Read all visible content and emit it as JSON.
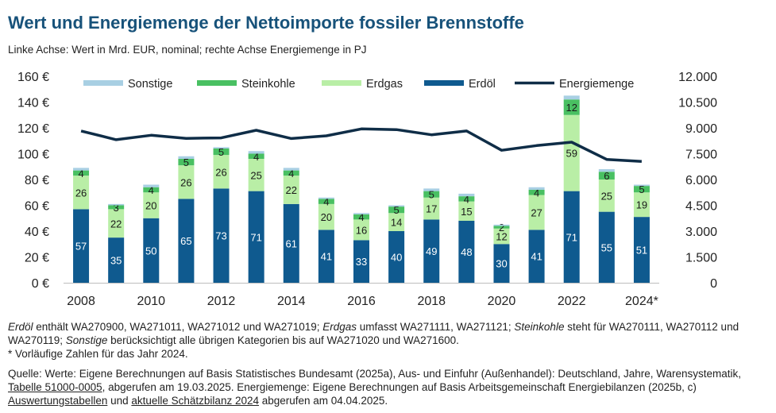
{
  "title": "Wert und Energiemenge der Nettoimporte fossiler Brennstoffe",
  "subtitle": "Linke Achse: Wert in Mrd. EUR, nominal; rechte Achse Energiemenge in PJ",
  "colors": {
    "title": "#17527a",
    "Erdöl": "#0f5a8f",
    "Erdgas": "#b9eea6",
    "Steinkohle": "#49c062",
    "Sonstige": "#a8cfe3",
    "Energiemenge": "#0f2d47"
  },
  "chart_data": {
    "type": "bar",
    "stacked": true,
    "grid": false,
    "legend_position": "top",
    "x_tick_labels": [
      "2008",
      "2010",
      "2012",
      "2014",
      "2016",
      "2018",
      "2020",
      "2022",
      "2024*"
    ],
    "categories": [
      "2008",
      "2009",
      "2010",
      "2011",
      "2012",
      "2013",
      "2014",
      "2015",
      "2016",
      "2017",
      "2018",
      "2019",
      "2020",
      "2021",
      "2022",
      "2023",
      "2024*"
    ],
    "y_left": {
      "ylim": [
        0,
        160
      ],
      "ticks": [
        "0 €",
        "20 €",
        "40 €",
        "60 €",
        "80 €",
        "100 €",
        "120 €",
        "140 €",
        "160 €"
      ]
    },
    "y_right": {
      "ylim": [
        0,
        12000
      ],
      "ticks": [
        "0",
        "1.500",
        "3.000",
        "4.500",
        "6.000",
        "7.500",
        "9.000",
        "10.500",
        "12.000"
      ]
    },
    "legend": [
      "Sonstige",
      "Steinkohle",
      "Erdgas",
      "Erdöl",
      "Energiemenge"
    ],
    "series": [
      {
        "name": "Erdöl",
        "axis": "left",
        "labels": true,
        "values": [
          57,
          35,
          50,
          65,
          73,
          71,
          61,
          41,
          33,
          40,
          49,
          48,
          30,
          41,
          71,
          55,
          51
        ]
      },
      {
        "name": "Erdgas",
        "axis": "left",
        "labels": true,
        "values": [
          26,
          22,
          20,
          26,
          26,
          25,
          22,
          20,
          16,
          14,
          17,
          15,
          12,
          27,
          59,
          25,
          19
        ]
      },
      {
        "name": "Steinkohle",
        "axis": "left",
        "labels": true,
        "values": [
          4,
          3,
          4,
          5,
          5,
          4,
          4,
          4,
          4,
          5,
          5,
          4,
          2,
          4,
          12,
          6,
          5
        ]
      },
      {
        "name": "Sonstige",
        "axis": "left",
        "labels": false,
        "values": [
          2,
          1,
          2,
          2,
          1,
          2,
          2,
          1,
          1,
          1,
          2,
          2,
          1,
          2,
          3,
          2,
          1
        ]
      },
      {
        "name": "Energiemenge",
        "type": "line",
        "axis": "right",
        "values": [
          8820,
          8310,
          8570,
          8390,
          8420,
          8860,
          8380,
          8540,
          8940,
          8900,
          8600,
          8820,
          7700,
          7970,
          8170,
          7170,
          7050
        ]
      }
    ]
  },
  "notes": {
    "line1_parts": [
      {
        "t": "Erdöl",
        "i": true
      },
      {
        "t": " enthält WA270900, WA271011, WA271012 und WA271019; "
      },
      {
        "t": "Erdgas",
        "i": true
      },
      {
        "t": " umfasst WA271111, WA271121; "
      },
      {
        "t": "Steinkohle",
        "i": true
      },
      {
        "t": " steht für WA270111, WA270112 und WA270119; "
      },
      {
        "t": "Sonstige",
        "i": true
      },
      {
        "t": " berücksichtigt alle übrigen Kategorien bis auf WA271020 und WA271600."
      }
    ],
    "line2": "* Vorläufige Zahlen für das Jahr 2024.",
    "source_parts": [
      {
        "t": "Quelle: Werte: Eigene Berechnungen auf Basis Statistisches Bundesamt (2025a), Aus- und Einfuhr (Außenhandel): Deutschland, Jahre, Warensystematik, "
      },
      {
        "t": "Tabelle 51000-0005",
        "u": true
      },
      {
        "t": ", abgerufen am 19.03.2025. Energiemenge: Eigene Berechnungen auf Basis Arbeitsgemeinschaft Energiebilanzen (2025b, c) "
      },
      {
        "t": "Auswertungstabellen",
        "u": true
      },
      {
        "t": " und "
      },
      {
        "t": "aktuelle Schätzbilanz 2024",
        "u": true
      },
      {
        "t": " abgerufen am 04.04.2025."
      }
    ]
  }
}
